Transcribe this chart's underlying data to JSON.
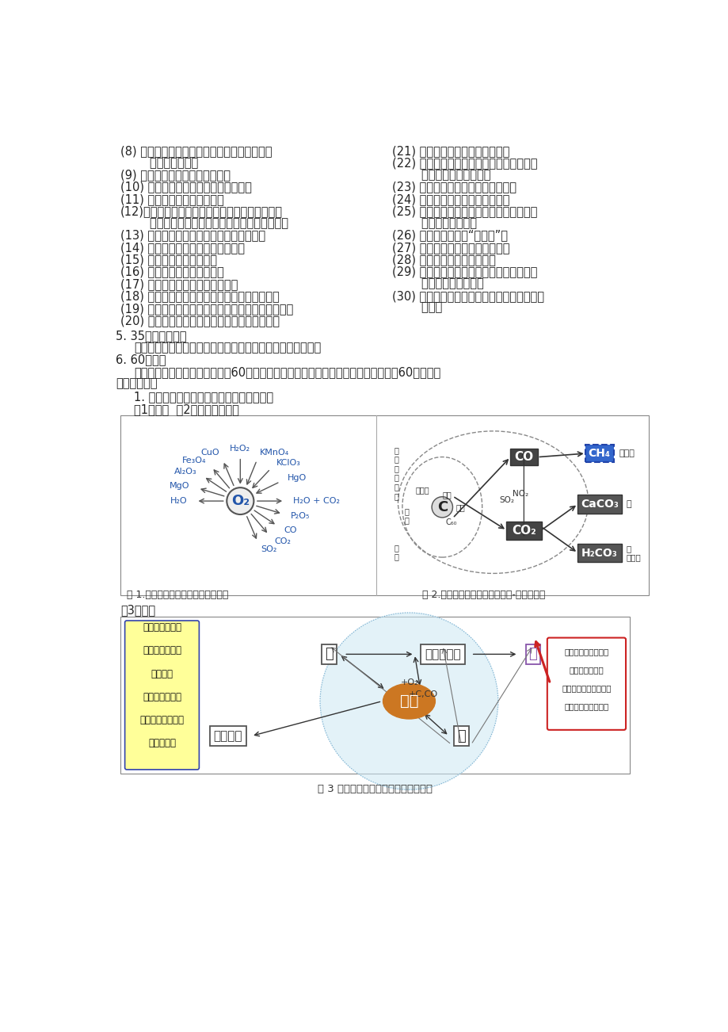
{
  "background_color": "#ffffff",
  "body_fontsize": 10.5,
  "left_col_items": [
    [
      "(8) 最常见三种干燥剂（氢氧化鼓、浓硫酸、硫",
      "        酸铜）不反应；"
    ],
    [
      "(9) 二氧化碳能灭火的三点原因；"
    ],
    [
      "(10) 常见的三大合成材料（共同点）；"
    ],
    [
      "(11) 水污染的三种主要原因；"
    ],
    [
      "(12)氢氧化馒在在三种不同行业中的用途（建筑、",
      "        工业制氢氧化鼓或漂白粉、改良酸性土壤）；"
    ],
    [
      "(13) 原子结构图中圈、线、数的三点含意；"
    ],
    [
      "(14) 严重污染空气的三种有害气体；"
    ],
    [
      "(15) 物质燃烧的三个条件；"
    ],
    [
      "(16) 铁的三种重要化学性质；"
    ],
    [
      "(17) 金属活动性顺序的三点运用；"
    ],
    [
      "(18) 不饱和溶液变成饱和溶液的三种常见方法；"
    ],
    [
      "(19) 分离混合物的三种方法（过滤、蒸馏、结晶）；"
    ],
    [
      "(20) 固体物质的溶解度受温度影响的三种情况；"
    ]
  ],
  "right_col_items": [
    [
      "(21) 实验操作中的三个三分之一；"
    ],
    [
      "(22) 一种试剂鉴别三种物质常用的方法（气",
      "        体、沉淠、无现象）；"
    ],
    [
      "(23) 检验酸碱溶液常用的三种方法；"
    ],
    [
      "(24) 能直接加热的三种常用仪器；"
    ],
    [
      "(25) 三种不同状态（块、粉、液）药品取用",
      "        的三个不同步骤；"
    ],
    [
      "(26) 取用药品要做到“三个不”；"
    ],
    [
      "(27) 烟、雾、气的三者不同区别；"
    ],
    [
      "(28) 净化水常用的三种方法；"
    ],
    [
      "(29) 除杂的三个注意点（不能引狼入室、玉",
      "        石俣焉、难舍难分）"
    ],
    [
      "(30) 常见实验叙述的三个要点（步骤、现象、",
      "        结论）"
    ]
  ],
  "section5_title": "5. 35个重点方程式",
  "section5_body": "可归纳为：二铜、三沉、四铁、五蓝、六气、七生、八规律。",
  "section6_title": "6. 60个问题",
  "section6_body1": "就是将以上内容在课本中找到约60个相关习题，针寶六十道典型题，检查有没有解冶60个问题。",
  "section6_body2": "（查漏补缺）",
  "subsection1": "1. 注重知识内容的跨单元的发散式系统链接",
  "subsection1a": "（1）氧气  （2）碳及其化合物",
  "fig1_caption": "图 1.学习单一物质的知识网络示意图",
  "fig2_caption": "图 2.学习系列化物质的知识网络-映射示意图",
  "subsection3": "（3）金属",
  "fig3_caption": "图 3 有关金属知识的网格结构构示意图"
}
